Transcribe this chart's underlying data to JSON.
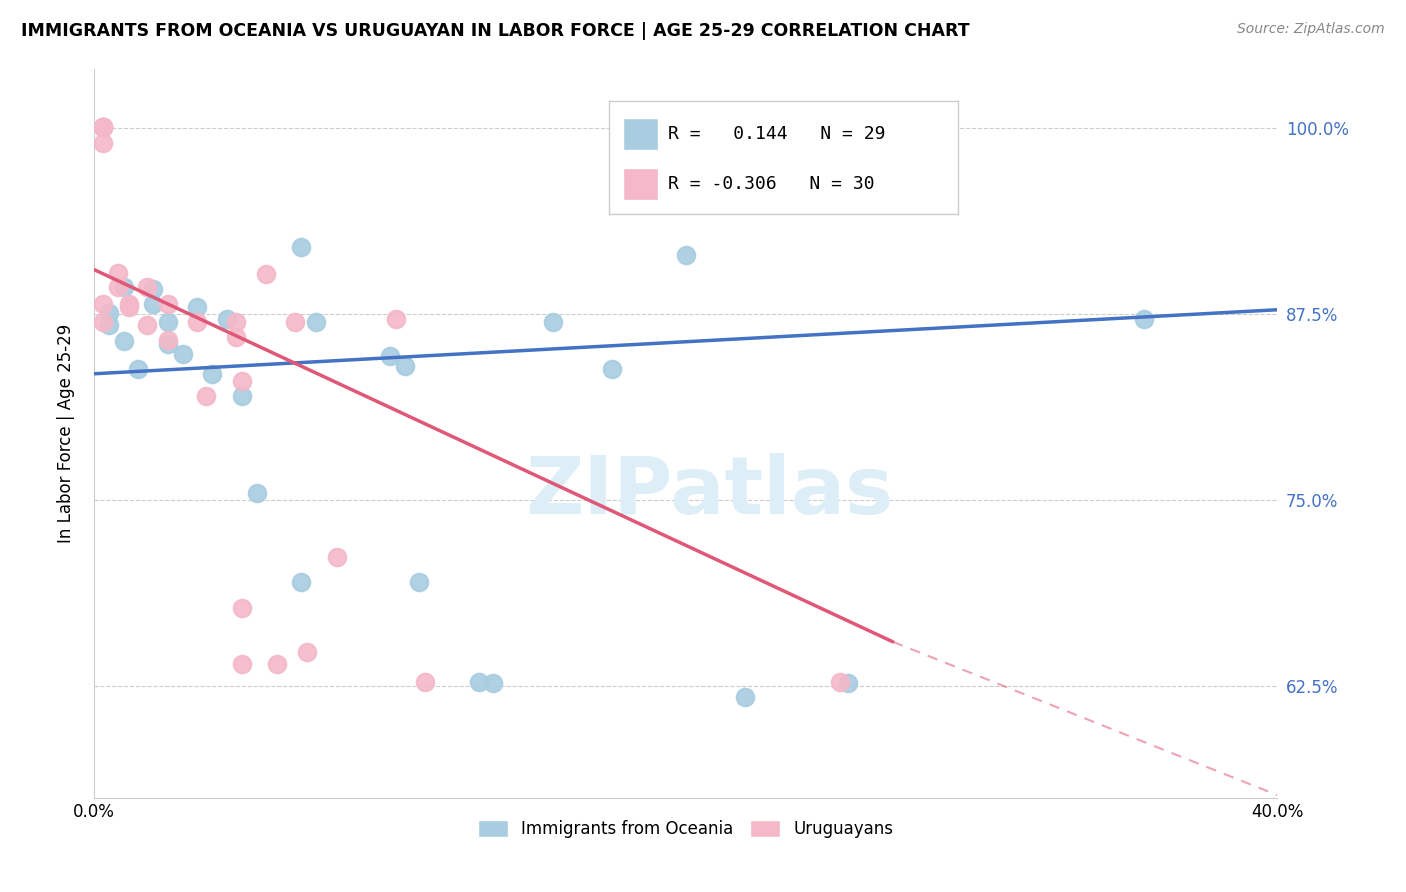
{
  "title": "IMMIGRANTS FROM OCEANIA VS URUGUAYAN IN LABOR FORCE | AGE 25-29 CORRELATION CHART",
  "source": "Source: ZipAtlas.com",
  "ylabel": "In Labor Force | Age 25-29",
  "xlim": [
    0.0,
    0.4
  ],
  "ylim": [
    0.55,
    1.04
  ],
  "yticks": [
    0.625,
    0.75,
    0.875,
    1.0
  ],
  "ytick_labels": [
    "62.5%",
    "75.0%",
    "87.5%",
    "100.0%"
  ],
  "xticks": [
    0.0,
    0.05,
    0.1,
    0.15,
    0.2,
    0.25,
    0.3,
    0.35,
    0.4
  ],
  "xtick_labels": [
    "0.0%",
    "",
    "",
    "",
    "",
    "",
    "",
    "",
    "40.0%"
  ],
  "blue_R": 0.144,
  "blue_N": 29,
  "pink_R": -0.306,
  "pink_N": 30,
  "blue_color": "#a8cce0",
  "pink_color": "#f4b8c8",
  "blue_line_color": "#4472c4",
  "pink_line_color": "#e05878",
  "watermark_color": "#ddeef7",
  "blue_line_x0": 0.0,
  "blue_line_y0": 0.835,
  "blue_line_x1": 0.4,
  "blue_line_y1": 0.878,
  "pink_line_x0": 0.0,
  "pink_line_y0": 0.905,
  "pink_line_solid_x1": 0.27,
  "pink_line_solid_y1": 0.655,
  "pink_line_dash_x1": 0.4,
  "pink_line_dash_y1": 0.552,
  "blue_scatter_x": [
    0.005,
    0.005,
    0.01,
    0.01,
    0.015,
    0.02,
    0.02,
    0.025,
    0.025,
    0.03,
    0.035,
    0.04,
    0.045,
    0.05,
    0.055,
    0.07,
    0.07,
    0.075,
    0.1,
    0.105,
    0.11,
    0.13,
    0.135,
    0.155,
    0.175,
    0.2,
    0.22,
    0.255,
    0.355
  ],
  "blue_scatter_y": [
    0.876,
    0.868,
    0.893,
    0.857,
    0.838,
    0.892,
    0.882,
    0.87,
    0.855,
    0.848,
    0.88,
    0.835,
    0.872,
    0.82,
    0.755,
    0.92,
    0.695,
    0.87,
    0.847,
    0.84,
    0.695,
    0.628,
    0.627,
    0.87,
    0.838,
    0.915,
    0.618,
    0.627,
    0.872
  ],
  "pink_scatter_x": [
    0.003,
    0.003,
    0.003,
    0.003,
    0.003,
    0.003,
    0.003,
    0.008,
    0.008,
    0.012,
    0.012,
    0.018,
    0.018,
    0.025,
    0.025,
    0.035,
    0.038,
    0.048,
    0.048,
    0.05,
    0.05,
    0.05,
    0.058,
    0.062,
    0.068,
    0.072,
    0.082,
    0.102,
    0.112,
    0.252
  ],
  "pink_scatter_y": [
    1.001,
    1.001,
    1.001,
    1.001,
    0.99,
    0.882,
    0.87,
    0.903,
    0.893,
    0.882,
    0.88,
    0.893,
    0.868,
    0.882,
    0.858,
    0.87,
    0.82,
    0.87,
    0.86,
    0.83,
    0.678,
    0.64,
    0.902,
    0.64,
    0.87,
    0.648,
    0.712,
    0.872,
    0.628,
    0.628
  ]
}
